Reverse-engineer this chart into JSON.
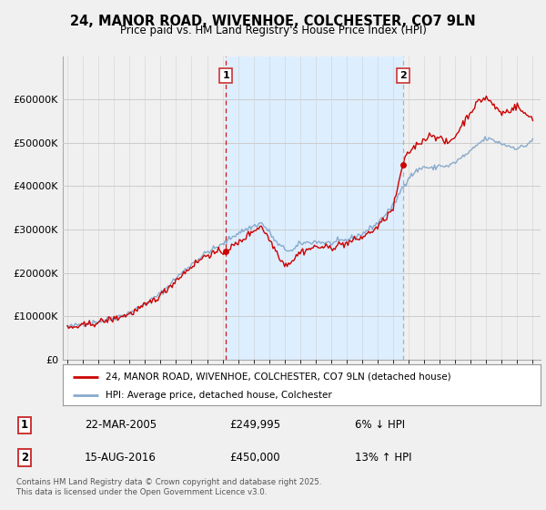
{
  "title": "24, MANOR ROAD, WIVENHOE, COLCHESTER, CO7 9LN",
  "subtitle": "Price paid vs. HM Land Registry's House Price Index (HPI)",
  "legend_label_red": "24, MANOR ROAD, WIVENHOE, COLCHESTER, CO7 9LN (detached house)",
  "legend_label_blue": "HPI: Average price, detached house, Colchester",
  "annotation1_label": "1",
  "annotation1_date": "22-MAR-2005",
  "annotation1_price": "£249,995",
  "annotation1_hpi": "6% ↓ HPI",
  "annotation2_label": "2",
  "annotation2_date": "15-AUG-2016",
  "annotation2_price": "£450,000",
  "annotation2_hpi": "13% ↑ HPI",
  "footnote": "Contains HM Land Registry data © Crown copyright and database right 2025.\nThis data is licensed under the Open Government Licence v3.0.",
  "red_color": "#cc0000",
  "blue_color": "#88aacc",
  "shade_color": "#ddeeff",
  "dashed1_color": "#cc0000",
  "dashed2_color": "#aaaaaa",
  "background_color": "#f0f0f0",
  "chart_bg_color": "#f0f0f0",
  "grid_color": "#cccccc",
  "ylim": [
    0,
    700000
  ],
  "yticks": [
    0,
    100000,
    200000,
    300000,
    400000,
    500000,
    600000
  ],
  "sale1_x": 2005.22,
  "sale1_y": 249995,
  "sale2_x": 2016.62,
  "sale2_y": 450000,
  "xlim_left": 1994.7,
  "xlim_right": 2025.5
}
